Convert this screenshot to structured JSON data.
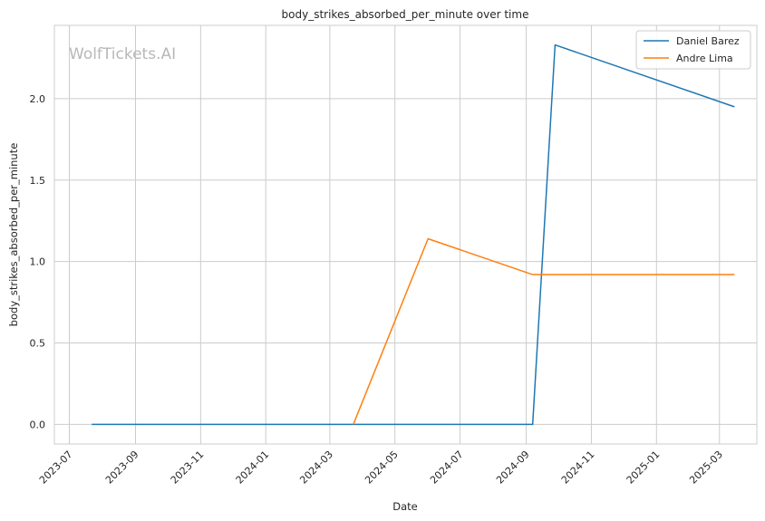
{
  "chart_data": {
    "type": "line",
    "title": "body_strikes_absorbed_per_minute over time",
    "xlabel": "Date",
    "ylabel": "body_strikes_absorbed_per_minute",
    "watermark": "WolfTickets.AI",
    "xlim": [
      "2023-06-17",
      "2025-04-05"
    ],
    "ylim": [
      -0.12,
      2.45
    ],
    "x_ticks": [
      "2023-07",
      "2023-09",
      "2023-11",
      "2024-01",
      "2024-03",
      "2024-05",
      "2024-07",
      "2024-09",
      "2024-11",
      "2025-01",
      "2025-03"
    ],
    "y_ticks": [
      0.0,
      0.5,
      1.0,
      1.5,
      2.0
    ],
    "y_tick_labels": [
      "0.0",
      "0.5",
      "1.0",
      "1.5",
      "2.0"
    ],
    "grid": true,
    "legend_position": "top-right",
    "series": [
      {
        "name": "Daniel Barez",
        "color": "#1f77b4",
        "points": [
          {
            "x": "2023-07-22",
            "y": 0.0
          },
          {
            "x": "2024-09-07",
            "y": 0.0
          },
          {
            "x": "2024-09-28",
            "y": 2.33
          },
          {
            "x": "2025-03-15",
            "y": 1.95
          }
        ]
      },
      {
        "name": "Andre Lima",
        "color": "#ff7f0e",
        "points": [
          {
            "x": "2024-03-23",
            "y": 0.0
          },
          {
            "x": "2024-06-01",
            "y": 1.14
          },
          {
            "x": "2024-09-07",
            "y": 0.92
          },
          {
            "x": "2025-03-15",
            "y": 0.92
          }
        ]
      }
    ]
  }
}
